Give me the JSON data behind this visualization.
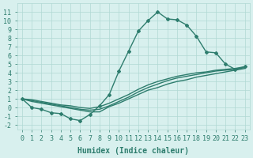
{
  "x_main": [
    0,
    1,
    2,
    3,
    4,
    5,
    6,
    7,
    8,
    9,
    10,
    11,
    12,
    13,
    14,
    15,
    16,
    17,
    18,
    19,
    20,
    21,
    22,
    23
  ],
  "y_main": [
    1.0,
    0.0,
    -0.2,
    -0.6,
    -0.7,
    -1.3,
    -1.5,
    -0.8,
    0.2,
    1.5,
    4.2,
    6.5,
    8.8,
    10.0,
    11.0,
    10.2,
    10.1,
    9.5,
    8.2,
    6.4,
    6.3,
    5.0,
    4.4,
    4.7
  ],
  "x_extra": [
    0,
    1,
    2,
    3,
    4,
    5,
    6,
    7,
    8,
    9,
    10,
    11,
    12,
    13,
    14,
    15,
    16,
    17,
    18,
    19,
    20,
    21,
    22,
    23
  ],
  "y_line1": [
    1.0,
    0.7,
    0.5,
    0.3,
    0.1,
    -0.1,
    -0.3,
    -0.5,
    -0.5,
    0.1,
    0.5,
    1.0,
    1.5,
    2.0,
    2.3,
    2.7,
    3.0,
    3.2,
    3.5,
    3.7,
    3.9,
    4.1,
    4.3,
    4.5
  ],
  "y_line2": [
    1.0,
    0.8,
    0.6,
    0.4,
    0.2,
    0.0,
    -0.2,
    -0.3,
    -0.2,
    0.2,
    0.7,
    1.2,
    1.8,
    2.3,
    2.7,
    3.1,
    3.4,
    3.6,
    3.8,
    4.0,
    4.2,
    4.3,
    4.4,
    4.6
  ],
  "y_line3": [
    1.0,
    0.9,
    0.7,
    0.5,
    0.3,
    0.2,
    0.0,
    -0.1,
    0.1,
    0.5,
    1.0,
    1.5,
    2.1,
    2.6,
    3.0,
    3.3,
    3.6,
    3.8,
    4.0,
    4.1,
    4.3,
    4.4,
    4.5,
    4.7
  ],
  "line_color": "#2e7d6e",
  "bg_color": "#d8f0ee",
  "grid_color": "#b0d8d4",
  "xlabel": "Humidex (Indice chaleur)",
  "ylim": [
    -2.5,
    12
  ],
  "xlim": [
    -0.5,
    23.5
  ],
  "yticks": [
    -2,
    -1,
    0,
    1,
    2,
    3,
    4,
    5,
    6,
    7,
    8,
    9,
    10,
    11
  ],
  "xticks": [
    0,
    1,
    2,
    3,
    4,
    5,
    6,
    7,
    8,
    9,
    10,
    11,
    12,
    13,
    14,
    15,
    16,
    17,
    18,
    19,
    20,
    21,
    22,
    23
  ],
  "marker": "D",
  "marker_size": 2.0,
  "line_width": 1.0,
  "font_size": 7
}
